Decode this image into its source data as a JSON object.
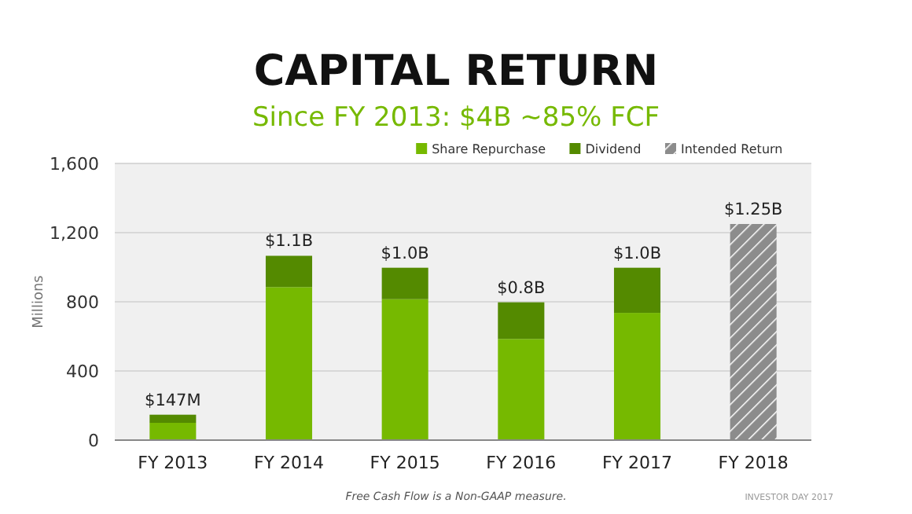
{
  "chart_data": {
    "type": "bar",
    "title": "CAPITAL RETURN",
    "subtitle": "Since FY 2013: $4B ~85% FCF",
    "ylabel": "Millions",
    "categories": [
      "FY 2013",
      "FY 2014",
      "FY 2015",
      "FY 2016",
      "FY 2017",
      "FY 2018"
    ],
    "stacked": true,
    "series": [
      {
        "name": "Share Repurchase",
        "color": "#76b900",
        "values": [
          100,
          885,
          815,
          585,
          736,
          null
        ]
      },
      {
        "name": "Dividend",
        "color": "#548a00",
        "values": [
          47,
          181,
          182,
          212,
          261,
          null
        ]
      },
      {
        "name": "Intended Return",
        "color": "#8c8c8c",
        "values": [
          null,
          null,
          null,
          null,
          null,
          1250
        ]
      }
    ],
    "totals": [
      "$147M",
      "$1.1B",
      "$1.0B",
      "$0.8B",
      "$1.0B",
      "$1.25B"
    ],
    "ylim": [
      0,
      1600
    ],
    "yticks": [
      0,
      {
        "value": 400,
        "label": "400"
      },
      {
        "value": 800,
        "label": "800"
      },
      {
        "value": 1200,
        "label": "1,200"
      },
      {
        "value": 1600,
        "label": "1,600"
      }
    ],
    "grid": "y",
    "legend": "top right",
    "annotations": [
      "Free Cash Flow is a Non-GAAP measure.",
      "INVESTOR DAY 2017"
    ]
  }
}
